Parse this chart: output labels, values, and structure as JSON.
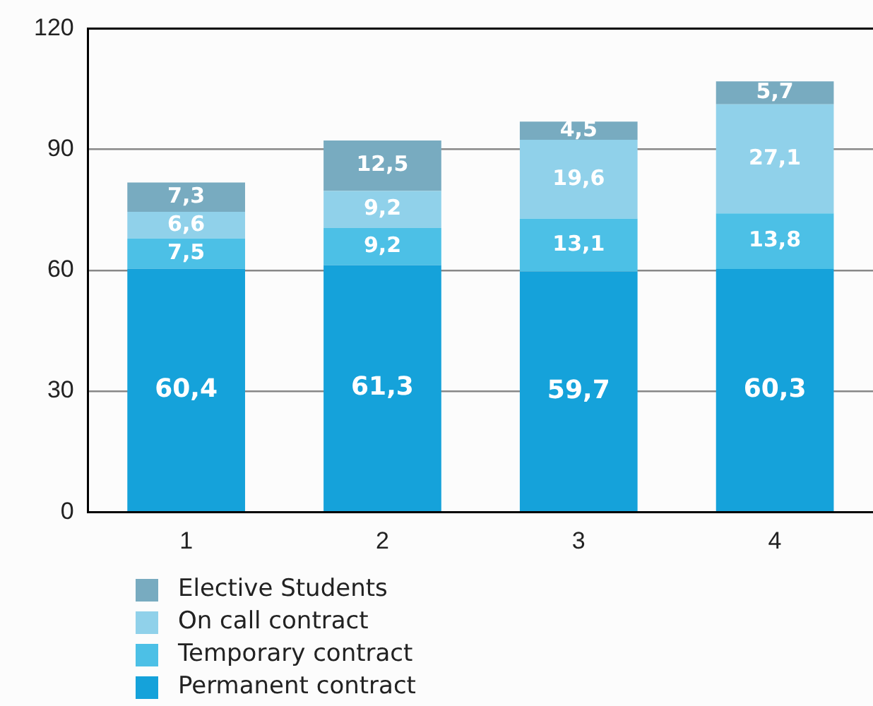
{
  "chart_data": {
    "type": "bar",
    "stacked": true,
    "categories": [
      "1",
      "2",
      "3",
      "4"
    ],
    "series": [
      {
        "name": "Permanent contract",
        "color": "#15a2da",
        "values": [
          60.4,
          61.3,
          59.7,
          60.3
        ],
        "value_labels": [
          "60,4",
          "61,3",
          "59,7",
          "60,3"
        ]
      },
      {
        "name": "Temporary contract",
        "color": "#4cc0e6",
        "values": [
          7.5,
          9.2,
          13.1,
          13.8
        ],
        "value_labels": [
          "7,5",
          "9,2",
          "13,1",
          "13,8"
        ]
      },
      {
        "name": "On call contract",
        "color": "#90d1ea",
        "values": [
          6.6,
          9.2,
          19.6,
          27.1
        ],
        "value_labels": [
          "6,6",
          "9,2",
          "19,6",
          "27,1"
        ]
      },
      {
        "name": "Elective Students",
        "color": "#78abc0",
        "values": [
          7.3,
          12.5,
          4.5,
          5.7
        ],
        "value_labels": [
          "7,3",
          "12,5",
          "4,5",
          "5,7"
        ]
      }
    ],
    "ylim": [
      0,
      120
    ],
    "yticks": [
      0,
      30,
      60,
      90,
      120
    ],
    "grid": "y",
    "legend": "bottom left"
  }
}
